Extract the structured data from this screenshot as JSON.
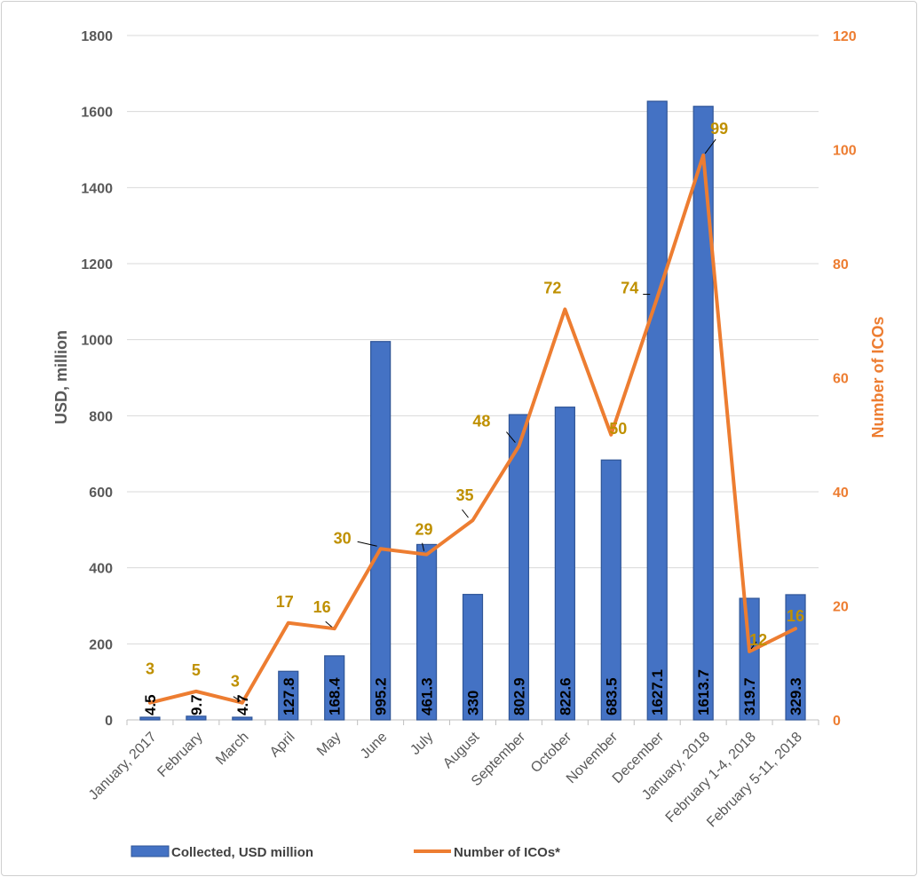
{
  "chart_data": {
    "type": "bar",
    "categories": [
      "January, 2017",
      "February",
      "March",
      "April",
      "May",
      "June",
      "July",
      "August",
      "September",
      "October",
      "November",
      "December",
      "January, 2018",
      "February 1-4, 2018",
      "February 5-11, 2018"
    ],
    "series": [
      {
        "name": "Collected, USD million",
        "type": "bar",
        "axis": "left",
        "values": [
          4.5,
          9.7,
          4.7,
          127.8,
          168.4,
          995.2,
          461.3,
          330,
          802.9,
          822.6,
          683.5,
          1627.1,
          1613.7,
          319.7,
          329.3
        ],
        "labels": [
          "4.5",
          "9.7",
          "4.7",
          "127.8",
          "168.4",
          "995.2",
          "461.3",
          "330",
          "802.9",
          "822.6",
          "683.5",
          "1627.1",
          "1613.7",
          "319.7",
          "329.3"
        ],
        "color": "#4472c4"
      },
      {
        "name": "Number of ICOs*",
        "type": "line",
        "axis": "right",
        "values": [
          3,
          5,
          3,
          17,
          16,
          30,
          29,
          35,
          48,
          72,
          50,
          74,
          99,
          12,
          16
        ],
        "labels": [
          "3",
          "5",
          "3",
          "17",
          "16",
          "30",
          "29",
          "35",
          "48",
          "72",
          "50",
          "74",
          "99",
          "12",
          "16"
        ],
        "color": "#ed7d31"
      }
    ],
    "ylabel": "USD, million",
    "y2label": "Number of ICOs",
    "ylim": [
      0,
      1800
    ],
    "y2lim": [
      0,
      120
    ],
    "yticks": [
      "0",
      "200",
      "400",
      "600",
      "800",
      "1000",
      "1200",
      "1400",
      "1600",
      "1800"
    ],
    "y2ticks": [
      "0",
      "20",
      "40",
      "60",
      "80",
      "100",
      "120"
    ],
    "grid": true,
    "legend_position": "bottom",
    "line_label_color": "#bf9000",
    "axis_title_left_color": "#595959",
    "axis_title_right_color": "#ed7d31"
  }
}
